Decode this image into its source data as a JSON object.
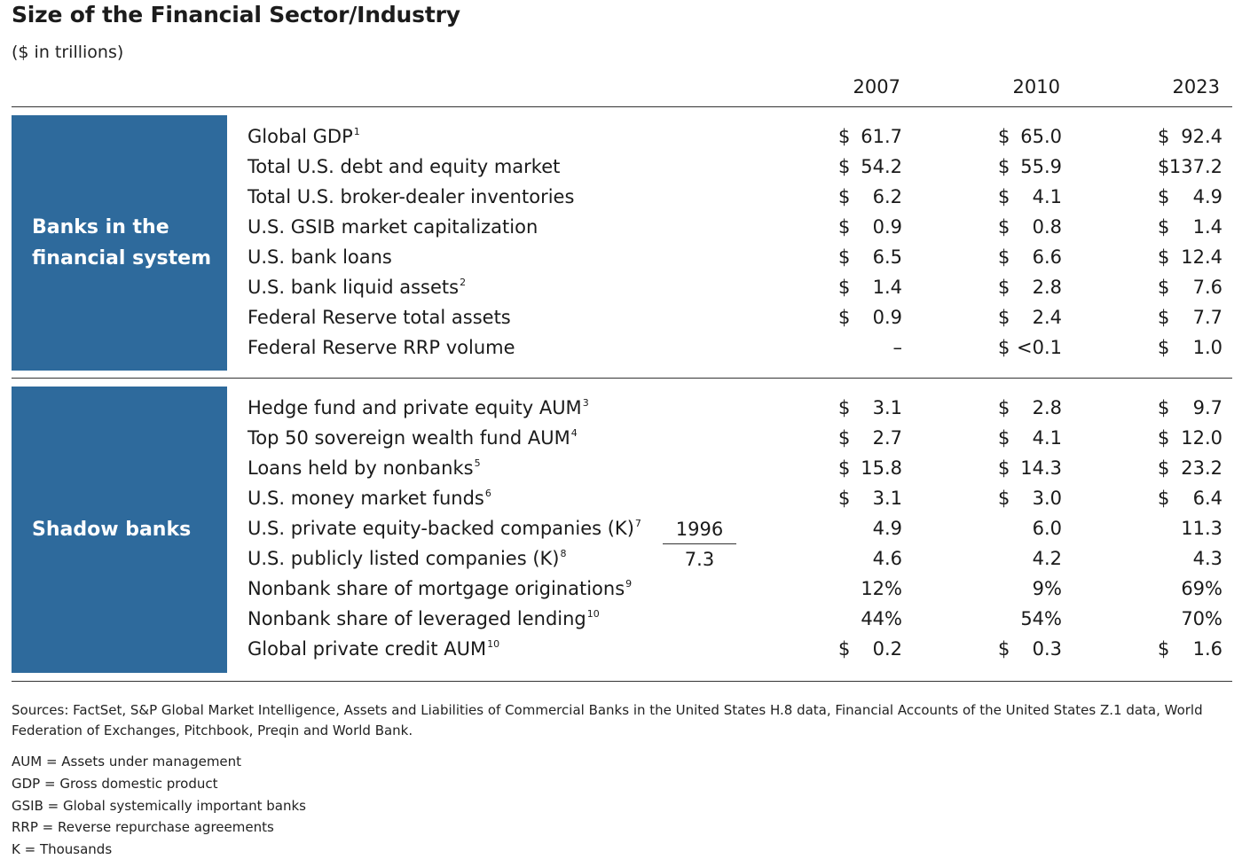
{
  "title": "Size of the Financial Sector/Industry",
  "subtitle": "($ in trillions)",
  "years": [
    "2007",
    "2010",
    "2023"
  ],
  "sections": [
    {
      "label_line1": "Banks in the",
      "label_line2": "financial system",
      "rows": [
        {
          "label": "Global GDP",
          "sup": "1",
          "values": [
            {
              "d": "$",
              "v": "61.7"
            },
            {
              "d": "$",
              "v": "65.0"
            },
            {
              "d": "$",
              "v": "92.4"
            }
          ]
        },
        {
          "label": "Total U.S. debt and equity market",
          "sup": "",
          "values": [
            {
              "d": "$",
              "v": "54.2"
            },
            {
              "d": "$",
              "v": "55.9"
            },
            {
              "d": "$",
              "v": "137.2"
            }
          ]
        },
        {
          "label": "Total U.S. broker-dealer inventories",
          "sup": "",
          "values": [
            {
              "d": "$",
              "v": "6.2"
            },
            {
              "d": "$",
              "v": "4.1"
            },
            {
              "d": "$",
              "v": "4.9"
            }
          ]
        },
        {
          "label": "U.S. GSIB market capitalization",
          "sup": "",
          "values": [
            {
              "d": "$",
              "v": "0.9"
            },
            {
              "d": "$",
              "v": "0.8"
            },
            {
              "d": "$",
              "v": "1.4"
            }
          ]
        },
        {
          "label": "U.S. bank loans",
          "sup": "",
          "values": [
            {
              "d": "$",
              "v": "6.5"
            },
            {
              "d": "$",
              "v": "6.6"
            },
            {
              "d": "$",
              "v": "12.4"
            }
          ]
        },
        {
          "label": "U.S. bank liquid assets",
          "sup": "2",
          "values": [
            {
              "d": "$",
              "v": "1.4"
            },
            {
              "d": "$",
              "v": "2.8"
            },
            {
              "d": "$",
              "v": "7.6"
            }
          ]
        },
        {
          "label": "Federal Reserve total assets",
          "sup": "",
          "values": [
            {
              "d": "$",
              "v": "0.9"
            },
            {
              "d": "$",
              "v": "2.4"
            },
            {
              "d": "$",
              "v": "7.7"
            }
          ]
        },
        {
          "label": "Federal Reserve RRP volume",
          "sup": "",
          "values": [
            {
              "d": "",
              "v": "–"
            },
            {
              "d": "$",
              "v": "<0.1"
            },
            {
              "d": "$",
              "v": "1.0"
            }
          ]
        }
      ]
    },
    {
      "label_line1": "Shadow banks",
      "label_line2": "",
      "rows": [
        {
          "label": "Hedge fund and private equity AUM",
          "sup": "3",
          "values": [
            {
              "d": "$",
              "v": "3.1"
            },
            {
              "d": "$",
              "v": "2.8"
            },
            {
              "d": "$",
              "v": "9.7"
            }
          ]
        },
        {
          "label": "Top 50 sovereign wealth fund AUM",
          "sup": "4",
          "values": [
            {
              "d": "$",
              "v": "2.7"
            },
            {
              "d": "$",
              "v": "4.1"
            },
            {
              "d": "$",
              "v": "12.0"
            }
          ]
        },
        {
          "label": "Loans held by nonbanks",
          "sup": "5",
          "values": [
            {
              "d": "$",
              "v": "15.8"
            },
            {
              "d": "$",
              "v": "14.3"
            },
            {
              "d": "$",
              "v": "23.2"
            }
          ]
        },
        {
          "label": "U.S. money market funds",
          "sup": "6",
          "values": [
            {
              "d": "$",
              "v": "3.1"
            },
            {
              "d": "$",
              "v": "3.0"
            },
            {
              "d": "$",
              "v": "6.4"
            }
          ]
        },
        {
          "label": "U.S. private equity-backed companies (K)",
          "sup": "7",
          "values": [
            {
              "d": "",
              "v": "4.9"
            },
            {
              "d": "",
              "v": "6.0"
            },
            {
              "d": "",
              "v": "11.3"
            }
          ]
        },
        {
          "label": "U.S. publicly listed companies (K)",
          "sup": "8",
          "values": [
            {
              "d": "",
              "v": "4.6"
            },
            {
              "d": "",
              "v": "4.2"
            },
            {
              "d": "",
              "v": "4.3"
            }
          ]
        },
        {
          "label": "Nonbank share of mortgage originations",
          "sup": "9",
          "values": [
            {
              "d": "",
              "v": "12%"
            },
            {
              "d": "",
              "v": "9%"
            },
            {
              "d": "",
              "v": "69%"
            }
          ]
        },
        {
          "label": "Nonbank share of leveraged lending",
          "sup": "10",
          "values": [
            {
              "d": "",
              "v": "44%"
            },
            {
              "d": "",
              "v": "54%"
            },
            {
              "d": "",
              "v": "70%"
            }
          ]
        },
        {
          "label": "Global private credit AUM",
          "sup": "10",
          "values": [
            {
              "d": "$",
              "v": "0.2"
            },
            {
              "d": "$",
              "v": "0.3"
            },
            {
              "d": "$",
              "v": "1.6"
            }
          ]
        }
      ]
    }
  ],
  "extra_column": {
    "year": "1996",
    "value": "7.3"
  },
  "sources": "Sources: FactSet, S&P Global Market Intelligence, Assets and Liabilities of Commercial Banks in the United States H.8 data, Financial Accounts of the United States Z.1 data, World Federation of Exchanges, Pitchbook, Preqin and World Bank.",
  "notes": [
    "AUM = Assets under management",
    "GDP = Gross domestic product",
    "GSIB = Global systemically important banks",
    "RRP = Reverse repurchase agreements",
    "K = Thousands"
  ]
}
